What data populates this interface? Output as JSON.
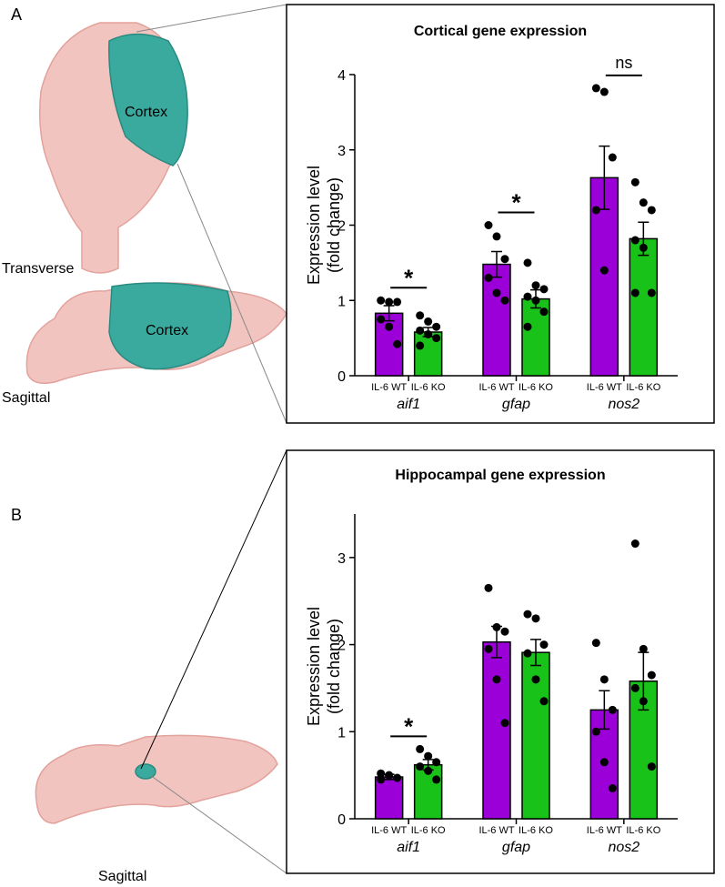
{
  "panels": [
    {
      "label": "A",
      "texts": [
        "Cortex",
        "Transverse",
        "Cortex",
        "Sagittal"
      ]
    },
    {
      "label": "B",
      "texts": [
        "Sagittal"
      ]
    }
  ],
  "chart_data": [
    {
      "type": "bar",
      "title": "Cortical gene expression",
      "ylabel": [
        "Expression level",
        "(fold change)"
      ],
      "categories": [
        "aif1",
        "gfap",
        "nos2"
      ],
      "series": [
        {
          "name": "IL-6 WT",
          "color": "#9b00d9",
          "values": [
            0.83,
            1.48,
            2.63
          ],
          "errors": [
            0.1,
            0.17,
            0.42
          ],
          "points": [
            [
              1.0,
              0.98,
              0.98,
              0.75,
              0.65,
              0.42
            ],
            [
              2.0,
              1.85,
              1.55,
              1.3,
              1.1,
              1.0
            ],
            [
              3.82,
              3.77,
              2.9,
              2.2,
              1.4
            ]
          ]
        },
        {
          "name": "IL-6 KO",
          "color": "#19c219",
          "values": [
            0.58,
            1.02,
            1.82
          ],
          "errors": [
            0.06,
            0.12,
            0.22
          ],
          "points": [
            [
              0.8,
              0.72,
              0.65,
              0.6,
              0.55,
              0.5,
              0.4
            ],
            [
              1.5,
              1.2,
              1.15,
              1.05,
              1.0,
              0.85,
              0.65
            ],
            [
              2.57,
              2.3,
              2.2,
              1.8,
              1.7,
              1.1,
              1.1
            ]
          ]
        }
      ],
      "significance": [
        "*",
        "*",
        "ns"
      ],
      "ylim": [
        0,
        4
      ],
      "yticks": [
        0,
        1,
        2,
        3,
        4
      ]
    },
    {
      "type": "bar",
      "title": "Hippocampal gene expression",
      "ylabel": [
        "Expression level",
        "(fold change)"
      ],
      "categories": [
        "aif1",
        "gfap",
        "nos2"
      ],
      "series": [
        {
          "name": "IL-6 WT",
          "color": "#9b00d9",
          "values": [
            0.48,
            2.03,
            1.25
          ],
          "errors": [
            0.03,
            0.18,
            0.22
          ],
          "points": [
            [
              0.52,
              0.5,
              0.47,
              0.45,
              0.5
            ],
            [
              2.65,
              2.2,
              2.15,
              1.95,
              1.6,
              1.1
            ],
            [
              2.02,
              1.6,
              1.25,
              1.0,
              0.65,
              0.35
            ]
          ]
        },
        {
          "name": "IL-6 KO",
          "color": "#19c219",
          "values": [
            0.62,
            1.91,
            1.58
          ],
          "errors": [
            0.06,
            0.15,
            0.33
          ],
          "points": [
            [
              0.8,
              0.72,
              0.65,
              0.6,
              0.55,
              0.45
            ],
            [
              2.35,
              2.3,
              2.0,
              1.9,
              1.6,
              1.35
            ],
            [
              3.16,
              1.95,
              1.65,
              1.5,
              1.35,
              0.6
            ]
          ]
        }
      ],
      "significance": [
        "*",
        null,
        null
      ],
      "ylim": [
        0,
        3.5
      ],
      "yticks": [
        0,
        1,
        2,
        3
      ]
    }
  ]
}
